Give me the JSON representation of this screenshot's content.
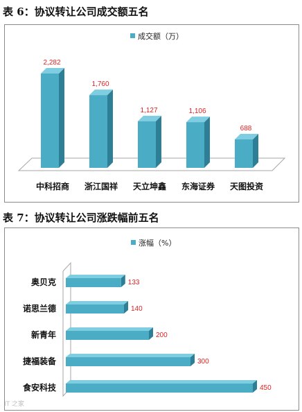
{
  "title1": "表 6：协议转让公司成交额五名",
  "title2": "表 7：协议转让公司涨跌幅前五名",
  "chart_data": [
    {
      "type": "bar",
      "orientation": "vertical",
      "categories": [
        "中科招商",
        "浙江国祥",
        "天立坤鑫",
        "东海证券",
        "天图投资"
      ],
      "series": [
        {
          "name": "成交额（万）",
          "values": [
            2282,
            1760,
            1127,
            1106,
            688
          ],
          "labels": [
            "2,282",
            "1,760",
            "1,127",
            "1,106",
            "688"
          ],
          "color": "#4bacc6"
        }
      ],
      "legend_position": "top",
      "grid": false
    },
    {
      "type": "bar",
      "orientation": "horizontal",
      "categories": [
        "奥贝克",
        "诺思兰德",
        "新青年",
        "捷福装备",
        "食安科技"
      ],
      "series": [
        {
          "name": "涨幅（%）",
          "values": [
            133,
            140,
            200,
            300,
            450
          ],
          "labels": [
            "133",
            "140",
            "200",
            "300",
            "450"
          ],
          "color": "#4bacc6"
        }
      ],
      "legend_position": "top",
      "grid": false
    }
  ]
}
